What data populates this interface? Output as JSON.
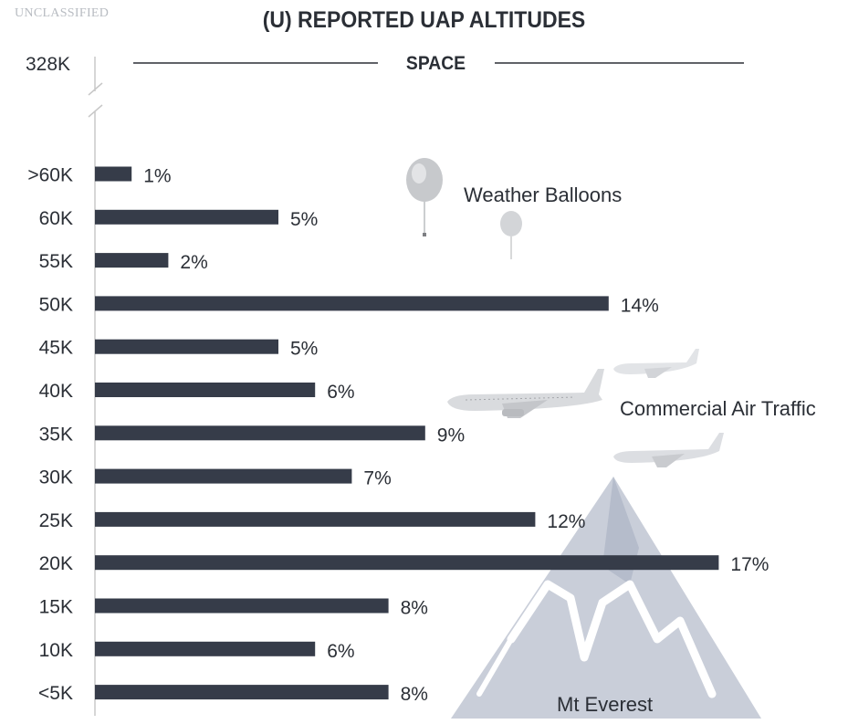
{
  "header": {
    "classification": "UNCLASSIFIED",
    "title": "(U) REPORTED UAP ALTITUDES"
  },
  "chart_data": {
    "type": "bar",
    "orientation": "horizontal",
    "title": "(U) REPORTED UAP ALTITUDES",
    "categories": [
      ">60K",
      "60K",
      "55K",
      "50K",
      "45K",
      "40K",
      "35K",
      "30K",
      "25K",
      "20K",
      "15K",
      "10K",
      "<5K"
    ],
    "values": [
      1,
      5,
      2,
      14,
      5,
      6,
      9,
      7,
      12,
      17,
      8,
      6,
      8
    ],
    "value_labels": [
      "1%",
      "5%",
      "2%",
      "14%",
      "5%",
      "6%",
      "9%",
      "7%",
      "12%",
      "17%",
      "8%",
      "6%",
      "8%"
    ],
    "top_axis_label": "328K",
    "top_line_label": "SPACE",
    "annotations": [
      "Weather Balloons",
      "Commercial Air Traffic",
      "Mt Everest"
    ],
    "grid": false,
    "bar_color": "#363c49"
  },
  "icons": [
    "weather-balloon-icon",
    "airplane-icon",
    "mountain-icon"
  ]
}
